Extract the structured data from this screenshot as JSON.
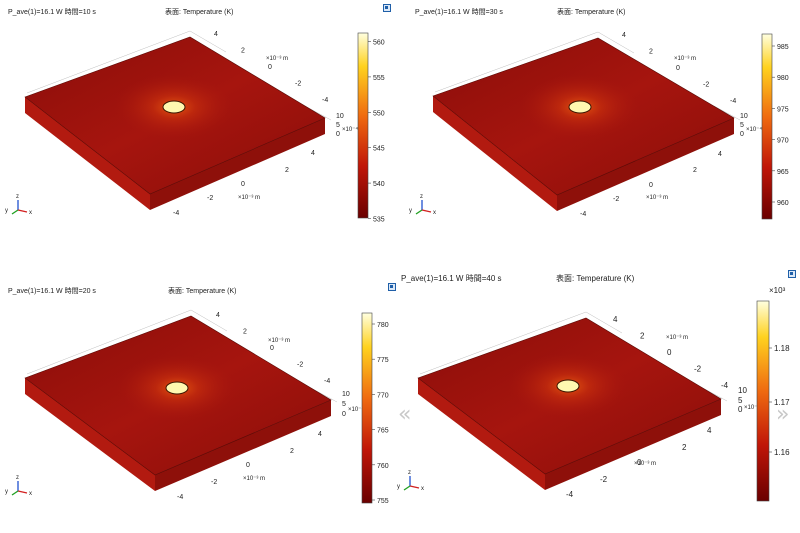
{
  "navigation": {
    "prev_arrow": "«",
    "next_arrow": "»"
  },
  "panels": [
    {
      "title": "P_ave(1)=16.1 W 時間=10 s",
      "subtitle": "表面: Temperature (K)",
      "colorbar": {
        "ticks": [
          "560",
          "555",
          "550",
          "545",
          "540",
          "535"
        ],
        "multiplier": ""
      },
      "axes": {
        "y_ticks": [
          "4",
          "2",
          "0",
          "-2",
          "-4"
        ],
        "y_unit": "×10⁻³ m",
        "x_ticks": [
          "4",
          "2",
          "0",
          "-2",
          "-4"
        ],
        "x_unit": "×10⁻³ m",
        "z_ticks": [
          "10",
          "5",
          "0"
        ],
        "z_unit": "×10⁻⁴ m"
      }
    },
    {
      "title": "P_ave(1)=16.1 W 時間=30 s",
      "subtitle": "表面: Temperature (K)",
      "colorbar": {
        "ticks": [
          "985",
          "980",
          "975",
          "970",
          "965",
          "960"
        ],
        "multiplier": ""
      },
      "axes": {
        "y_ticks": [
          "4",
          "2",
          "0",
          "-2",
          "-4"
        ],
        "y_unit": "×10⁻³ m",
        "x_ticks": [
          "4",
          "2",
          "0",
          "-2",
          "-4"
        ],
        "x_unit": "×10⁻³ m",
        "z_ticks": [
          "10",
          "5",
          "0"
        ],
        "z_unit": "×10⁻⁴ m"
      }
    },
    {
      "title": "P_ave(1)=16.1 W 時間=20 s",
      "subtitle": "表面: Temperature (K)",
      "colorbar": {
        "ticks": [
          "780",
          "775",
          "770",
          "765",
          "760",
          "755"
        ],
        "multiplier": ""
      },
      "axes": {
        "y_ticks": [
          "4",
          "2",
          "0",
          "-2",
          "-4"
        ],
        "y_unit": "×10⁻³ m",
        "x_ticks": [
          "4",
          "2",
          "0",
          "-2",
          "-4"
        ],
        "x_unit": "×10⁻³ m",
        "z_ticks": [
          "10",
          "5",
          "0"
        ],
        "z_unit": "×10⁻⁴ m"
      }
    },
    {
      "title": "P_ave(1)=16.1 W 時間=40 s",
      "subtitle": "表面: Temperature (K)",
      "colorbar": {
        "ticks": [
          "1.18",
          "1.17",
          "1.16"
        ],
        "multiplier": "×10³"
      },
      "axes": {
        "y_ticks": [
          "4",
          "2",
          "0",
          "-2",
          "-4"
        ],
        "y_unit": "×10⁻³ m",
        "x_ticks": [
          "4",
          "2",
          "0",
          "-2",
          "-4"
        ],
        "x_unit": "×10⁻³ m",
        "z_ticks": [
          "10",
          "5",
          "0"
        ],
        "z_unit": "×10⁻⁴ m"
      }
    }
  ],
  "triad": {
    "x": "x",
    "y": "y",
    "z": "z"
  },
  "colors": {
    "plate_top_edge": "#8a0d0a",
    "plate_top_mid": "#a6150e",
    "plate_side_left": "#b21a10",
    "plate_side_front": "#8e100a",
    "hotspot_core": "#fff8b0",
    "hotspot_glow": "#e85a12",
    "colorbar_top": "#ffffe0",
    "colorbar_mid_hi": "#ffd21f",
    "colorbar_mid": "#ef6a10",
    "colorbar_mid_lo": "#c01608",
    "colorbar_bottom": "#6a0000",
    "triad_x": "#d22020",
    "triad_y": "#20a020",
    "triad_z": "#2050d0"
  }
}
